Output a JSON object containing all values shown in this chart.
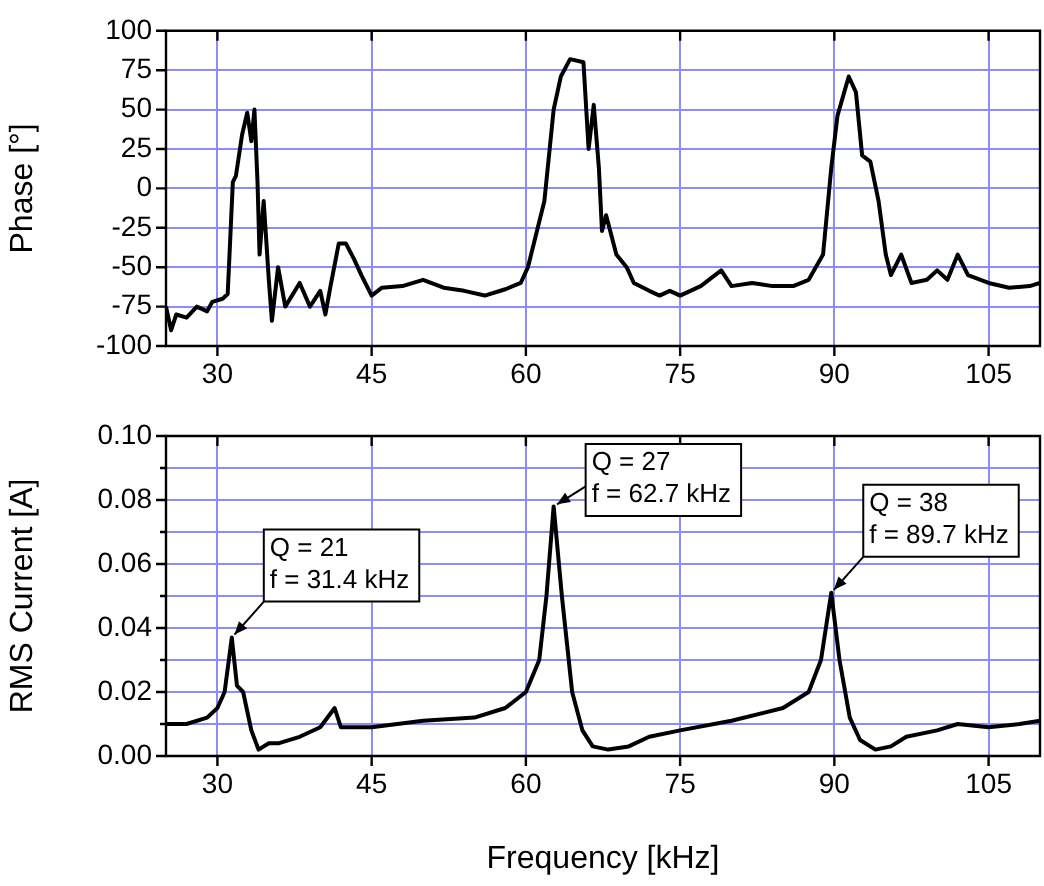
{
  "chart_data": [
    {
      "type": "line",
      "ylabel": "Phase [°]",
      "xlim": [
        25,
        110
      ],
      "xticks": [
        30,
        45,
        60,
        75,
        90,
        105
      ],
      "ylim": [
        -100,
        100
      ],
      "yticks": [
        -100,
        -75,
        -50,
        -25,
        0,
        25,
        50,
        75,
        100
      ],
      "grid": true,
      "legend": false,
      "line_style": "solid",
      "series": [
        {
          "color": "#000000",
          "x": [
            25,
            25.5,
            26,
            27,
            28,
            29,
            29.5,
            30.5,
            31,
            31.5,
            31.8,
            32.4,
            32.9,
            33.3,
            33.6,
            33.9,
            34.1,
            34.5,
            35,
            35.3,
            35.9,
            36.6,
            38,
            39,
            40,
            40.5,
            41,
            41.8,
            42.5,
            43.3,
            44,
            45,
            46,
            48,
            50,
            52,
            54,
            56,
            58,
            59.5,
            60.2,
            61.8,
            62.7,
            63.4,
            64.3,
            65.6,
            66.1,
            66.6,
            67.1,
            67.4,
            67.8,
            68.8,
            69.8,
            70.5,
            72,
            73,
            74,
            75,
            77,
            79,
            80,
            82,
            84,
            86,
            87.5,
            88.9,
            89.7,
            90.3,
            91.4,
            92.1,
            92.7,
            93.5,
            94.3,
            95,
            95.5,
            96.5,
            97.5,
            99,
            100,
            101,
            102,
            103,
            105,
            107,
            109,
            110
          ],
          "values": [
            -75,
            -90,
            -80,
            -82,
            -75,
            -78,
            -72,
            -70,
            -67,
            4,
            8,
            34,
            48,
            30,
            50,
            4,
            -42,
            -8,
            -58,
            -84,
            -50,
            -75,
            -60,
            -75,
            -65,
            -80,
            -62,
            -35,
            -35,
            -45,
            -55,
            -68,
            -63,
            -62,
            -58,
            -63,
            -65,
            -68,
            -64,
            -60,
            -50,
            -8,
            50,
            71,
            82,
            80,
            25,
            53,
            13,
            -27,
            -17,
            -42,
            -50,
            -60,
            -65,
            -68,
            -65,
            -68,
            -62,
            -52,
            -62,
            -60,
            -62,
            -62,
            -58,
            -42,
            13,
            46,
            71,
            61,
            21,
            17,
            -8,
            -42,
            -55,
            -42,
            -60,
            -58,
            -52,
            -58,
            -42,
            -55,
            -60,
            -63,
            -62,
            -60
          ]
        }
      ]
    },
    {
      "type": "line",
      "xlabel": "Frequency [kHz]",
      "ylabel": "RMS Current [A]",
      "xlim": [
        25,
        110
      ],
      "xticks": [
        30,
        45,
        60,
        75,
        90,
        105
      ],
      "ylim": [
        0,
        0.1
      ],
      "yticks": [
        "0.00",
        {
          "value": 0.01,
          "label": null
        },
        {
          "value": 0.02,
          "label": "0.02"
        },
        {
          "value": 0.03,
          "label": null
        },
        {
          "value": 0.04,
          "label": "0.04"
        },
        {
          "value": 0.05,
          "label": null
        },
        {
          "value": 0.06,
          "label": "0.06"
        },
        {
          "value": 0.07,
          "label": null
        },
        {
          "value": 0.08,
          "label": "0.08"
        },
        {
          "value": 0.09,
          "label": null
        },
        {
          "value": 0.1,
          "label": "0.10"
        }
      ],
      "grid": true,
      "legend": false,
      "line_style": "solid",
      "series": [
        {
          "color": "#000000",
          "x": [
            25,
            27,
            29,
            30,
            30.7,
            31.4,
            31.9,
            32.5,
            33.3,
            34,
            35,
            36,
            38,
            40,
            41.4,
            42,
            45,
            50,
            55,
            58,
            60,
            61.3,
            62,
            62.7,
            63.5,
            64.5,
            65.5,
            66.5,
            68,
            70,
            72,
            75,
            80,
            85,
            87.5,
            88.7,
            89.7,
            90.5,
            91.5,
            92.5,
            94,
            95.5,
            97,
            100,
            102,
            105,
            108,
            110
          ],
          "values": [
            0.01,
            0.01,
            0.012,
            0.015,
            0.02,
            0.037,
            0.022,
            0.02,
            0.008,
            0.002,
            0.004,
            0.004,
            0.006,
            0.009,
            0.015,
            0.009,
            0.009,
            0.011,
            0.012,
            0.015,
            0.02,
            0.03,
            0.05,
            0.078,
            0.05,
            0.02,
            0.008,
            0.003,
            0.002,
            0.003,
            0.006,
            0.008,
            0.011,
            0.015,
            0.02,
            0.03,
            0.051,
            0.03,
            0.012,
            0.005,
            0.002,
            0.003,
            0.006,
            0.008,
            0.01,
            0.009,
            0.01,
            0.011
          ]
        }
      ],
      "annotations": [
        {
          "text": "Q = 21\nf = 31.4 kHz",
          "x": 31.4,
          "y": 0.037
        },
        {
          "text": "Q = 27\nf = 62.7 kHz",
          "x": 62.7,
          "y": 0.078
        },
        {
          "text": "Q = 38\nf = 89.7 kHz",
          "x": 89.7,
          "y": 0.051
        }
      ]
    }
  ]
}
